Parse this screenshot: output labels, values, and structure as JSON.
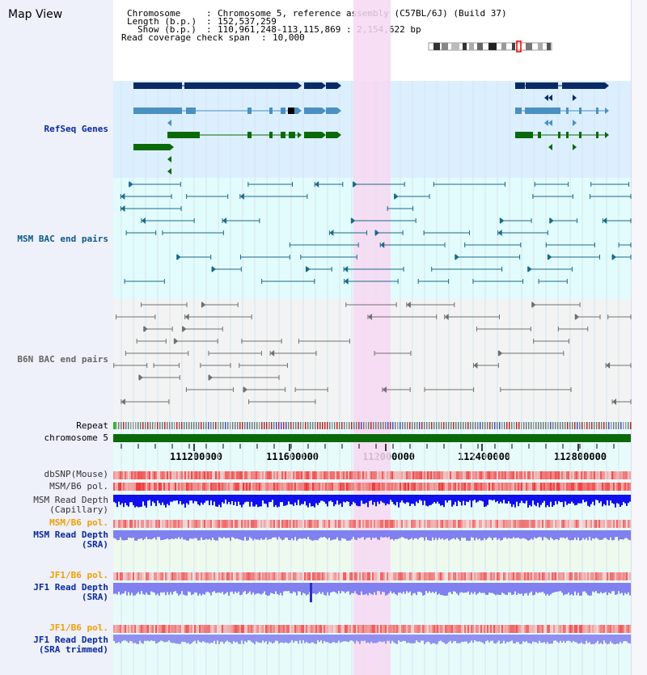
{
  "page": {
    "title": "Map View"
  },
  "header": {
    "chromosome_label": "Chromosome",
    "chromosome_value": "Chromosome 5, reference assembly (C57BL/6J) (Build 37)",
    "length_label": "Length (b.p.)",
    "length_value": "152,537,259",
    "show_label": "Show (b.p.)",
    "show_value": "110,961,248-113,115,869 : 2,154,622 bp",
    "coverage_label": "Read coverage check span",
    "coverage_value": "10,000"
  },
  "tracks": {
    "refseq": "RefSeq Genes",
    "msm_bac": "MSM BAC end pairs",
    "b6n_bac": "B6N BAC end pairs",
    "repeat": "Repeat",
    "chromosome": "chromosome 5",
    "dbsnp": "dbSNP(Mouse)",
    "msm_b6_pol": "MSM/B6 pol.",
    "msm_depth_cap_1": "MSM Read Depth",
    "msm_depth_cap_2": "(Capillary)",
    "msm_b6_pol_sra": "MSM/B6 pol.",
    "msm_depth_sra_1": "MSM Read Depth",
    "msm_depth_sra_2": "(SRA)",
    "jf1_b6_pol": "JF1/B6 pol.",
    "jf1_depth_sra_1": "JF1 Read Depth",
    "jf1_depth_sra_2": "(SRA)",
    "jf1_b6_pol_trim": "JF1/B6 pol.",
    "jf1_depth_trim_1": "JF1 Read Depth",
    "jf1_depth_trim_2": "(SRA trimmed)"
  },
  "axis": {
    "ticks": [
      "111200000",
      "111600000",
      "112000000",
      "112400000",
      "112800000"
    ]
  },
  "colors": {
    "highlight": "#f7d8f2",
    "gene_dark": "#0a2a66",
    "gene_mid": "#4a90c0",
    "gene_green": "#0a6a0a",
    "msm_bac": "#1a6a8a",
    "b6n_bac": "#707070",
    "chromosome_bar": "#0a6a0a",
    "depth_capillary": "#1010ee",
    "depth_sra": "#8080f0"
  }
}
